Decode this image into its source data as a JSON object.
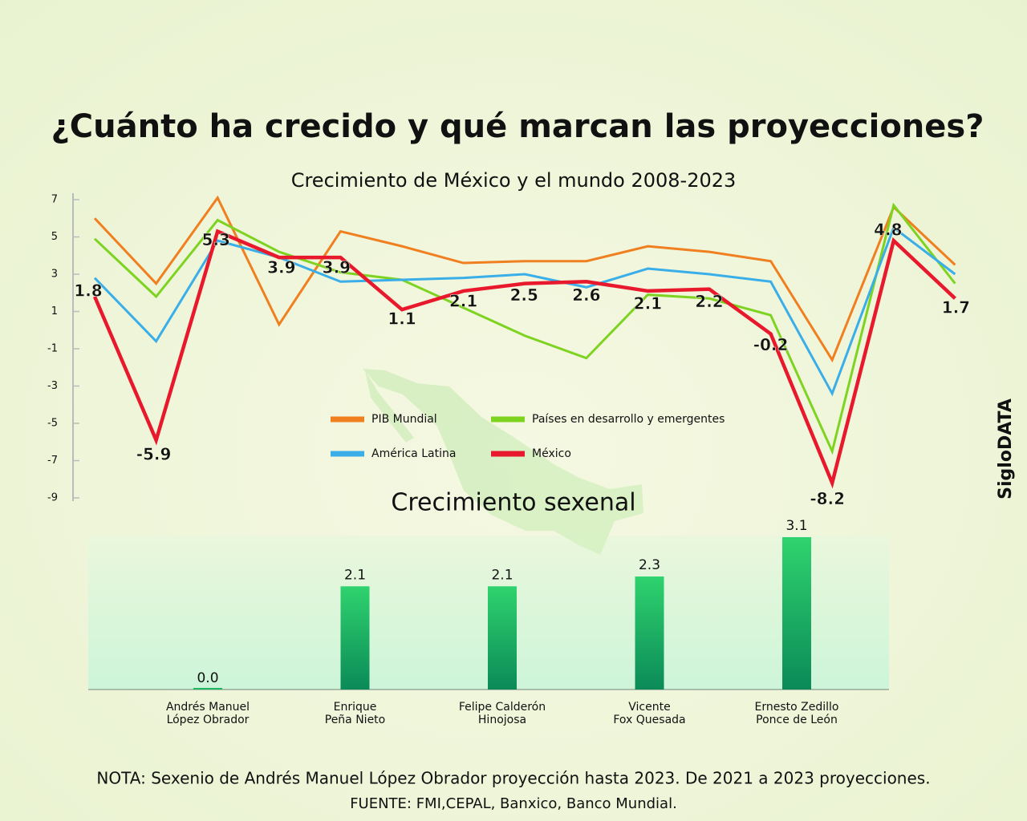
{
  "chart_data": [
    {
      "type": "line",
      "title": "¿Cuánto ha crecido y qué marcan las proyecciones?",
      "subtitle": "Crecimiento de México y el mundo 2008-2023",
      "categories": [
        null,
        null,
        null,
        null,
        null,
        null,
        null,
        null,
        null,
        null,
        null,
        null,
        null,
        null,
        null
      ],
      "ylim": [
        -9,
        7
      ],
      "yticks": [
        7,
        5,
        3,
        1,
        -1,
        -3,
        -5,
        -7,
        -9
      ],
      "legend": "center",
      "series": [
        {
          "name": "PIB Mundial",
          "color": "#f07f1f",
          "values": [
            6.0,
            2.5,
            7.1,
            0.3,
            5.3,
            4.5,
            3.6,
            3.7,
            3.7,
            4.5,
            4.2,
            3.7,
            -1.6,
            6.6,
            3.5
          ]
        },
        {
          "name": "Países en desarrollo y emergentes",
          "color": "#7ed321",
          "values": [
            4.9,
            1.8,
            5.9,
            4.2,
            3.1,
            2.7,
            1.2,
            -0.3,
            -1.5,
            1.9,
            1.7,
            0.8,
            -6.5,
            6.7,
            2.5
          ]
        },
        {
          "name": "América Latina",
          "color": "#3aaee8",
          "values": [
            2.8,
            -0.6,
            4.8,
            3.9,
            2.6,
            2.7,
            2.8,
            3.0,
            2.3,
            3.3,
            3.0,
            2.6,
            -3.4,
            5.5,
            3.0
          ]
        },
        {
          "name": "México",
          "color": "#e8192c",
          "values": [
            1.8,
            -5.9,
            5.3,
            3.9,
            3.9,
            1.1,
            2.1,
            2.5,
            2.6,
            2.1,
            2.2,
            -0.2,
            -8.2,
            4.8,
            1.7
          ]
        }
      ]
    },
    {
      "type": "bar",
      "title": "Crecimiento sexenal",
      "categories": [
        "Andrés Manuel\nLópez Obrador",
        "Enrique\nPeña Nieto",
        "Felipe Calderón\nHinojosa",
        "Vicente\nFox Quesada",
        "Ernesto Zedillo\nPonce de León"
      ],
      "values": [
        0,
        2.1,
        2.1,
        2.3,
        3.1
      ],
      "value_labels": [
        "0.0",
        "2.1",
        "2.1",
        "2.3",
        "3.1"
      ],
      "color": "#1fb865"
    }
  ],
  "brand": "SigloDATA",
  "note": "NOTA: Sexenio de Andrés Manuel López Obrador proyección hasta 2023. De 2021 a 2023 proyecciones.",
  "source": "FUENTE: FMI,CEPAL, Banxico, Banco Mundial."
}
